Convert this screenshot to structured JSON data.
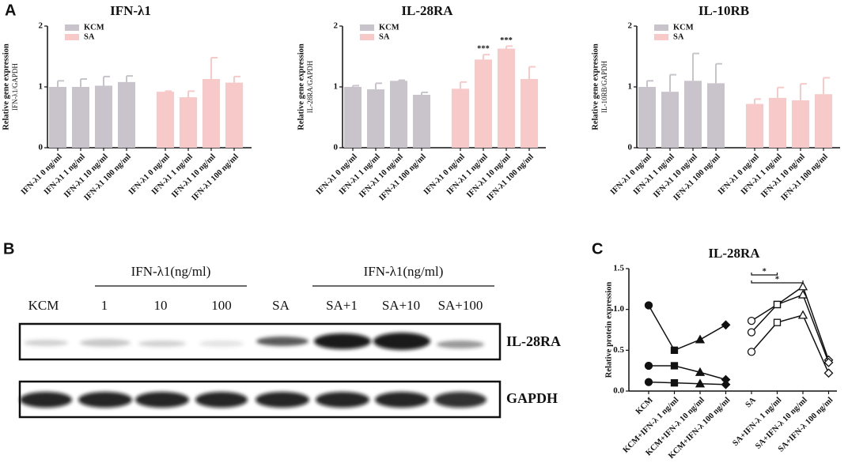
{
  "panel_labels": [
    "A",
    "B",
    "C"
  ],
  "blot": {
    "headers": [
      "IFN-λ1(ng/ml)",
      "IFN-λ1(ng/ml)"
    ],
    "lanes": [
      "KCM",
      "1",
      "10",
      "100",
      "SA",
      "SA+1",
      "SA+10",
      "SA+100"
    ],
    "rows": [
      "IL-28RA",
      "GAPDH"
    ]
  },
  "chart_data": [
    {
      "type": "bar",
      "title": "IFN-λ1",
      "ylabel": "Relative gene expression",
      "ylabel2": "IFN-λ1/GAPDH",
      "categories": [
        "IFN-λ1 0 ng/ml",
        "IFN-λ1 1 ng/ml",
        "IFN-λ1 10 ng/ml",
        "IFN-λ1 100 ng/ml",
        "IFN-λ1 0 ng/ml",
        "IFN-λ1 1 ng/ml",
        "IFN-λ1 10 ng/ml",
        "IFN-λ1 100 ng/ml"
      ],
      "series": [
        {
          "name": "KCM",
          "color": "#c9c4cc",
          "values": [
            1.0,
            1.0,
            1.02,
            1.08,
            null,
            null,
            null,
            null
          ],
          "errors": [
            0.1,
            0.13,
            0.15,
            0.1,
            null,
            null,
            null,
            null
          ]
        },
        {
          "name": "SA",
          "color": "#f7c9c9",
          "values": [
            null,
            null,
            null,
            null,
            0.92,
            0.83,
            1.13,
            1.07
          ],
          "errors": [
            null,
            null,
            null,
            null,
            0.01,
            0.1,
            0.35,
            0.1
          ]
        }
      ],
      "ylim": [
        0,
        2
      ],
      "yticks": [
        0,
        1,
        2
      ],
      "legend": "upper left"
    },
    {
      "type": "bar",
      "title": "IL-28RA",
      "ylabel": "Relative gene expression",
      "ylabel2": "IL-28RA/GAPDH",
      "categories": [
        "IFN-λ1 0 ng/ml",
        "IFN-λ1 1 ng/ml",
        "IFN-λ1 10 ng/ml",
        "IFN-λ1 100 ng/ml",
        "IFN-λ1 0 ng/ml",
        "IFN-λ1 1 ng/ml",
        "IFN-λ1 10 ng/ml",
        "IFN-λ1 100 ng/ml"
      ],
      "series": [
        {
          "name": "KCM",
          "color": "#c9c4cc",
          "values": [
            1.0,
            0.96,
            1.1,
            0.87,
            null,
            null,
            null,
            null
          ],
          "errors": [
            0.02,
            0.1,
            0.01,
            0.04,
            null,
            null,
            null,
            null
          ]
        },
        {
          "name": "SA",
          "color": "#f7c9c9",
          "values": [
            null,
            null,
            null,
            null,
            0.97,
            1.45,
            1.63,
            1.13
          ],
          "errors": [
            null,
            null,
            null,
            null,
            0.11,
            0.08,
            0.04,
            0.2
          ]
        }
      ],
      "annotations": [
        {
          "text": "***",
          "series": 1,
          "index": 5
        },
        {
          "text": "***",
          "series": 1,
          "index": 6
        }
      ],
      "ylim": [
        0,
        2
      ],
      "yticks": [
        0,
        1,
        2
      ],
      "legend": "upper left"
    },
    {
      "type": "bar",
      "title": "IL-10RB",
      "ylabel": "Relative gene expression",
      "ylabel2": "IL-10RB/GAPDH",
      "categories": [
        "IFN-λ1 0 ng/ml",
        "IFN-λ1 1 ng/ml",
        "IFN-λ1 10 ng/ml",
        "IFN-λ1 100 ng/ml",
        "IFN-λ1 0 ng/ml",
        "IFN-λ1 1 ng/ml",
        "IFN-λ1 10 ng/ml",
        "IFN-λ1 100 ng/ml"
      ],
      "series": [
        {
          "name": "KCM",
          "color": "#c9c4cc",
          "values": [
            1.0,
            0.92,
            1.1,
            1.06,
            null,
            null,
            null,
            null
          ],
          "errors": [
            0.1,
            0.28,
            0.45,
            0.32,
            null,
            null,
            null,
            null
          ]
        },
        {
          "name": "SA",
          "color": "#f7c9c9",
          "values": [
            null,
            null,
            null,
            null,
            0.72,
            0.82,
            0.78,
            0.88
          ],
          "errors": [
            null,
            null,
            null,
            null,
            0.08,
            0.17,
            0.27,
            0.27
          ]
        }
      ],
      "ylim": [
        0,
        2
      ],
      "yticks": [
        0,
        1,
        2
      ],
      "legend": "upper left"
    },
    {
      "type": "line",
      "title": "IL-28RA",
      "ylabel": "Relative protein expression",
      "categories": [
        "KCM",
        "KCM+IFN-λ 1 ng/ml",
        "KCM+IFN-λ 10 ng/ml",
        "KCM+IFN-λ 100 ng/ml",
        "SA",
        "SA+IFN-λ 1 ng/ml",
        "SA+IFN-λ 10 ng/ml",
        "SA+IFN-λ 100 ng/ml"
      ],
      "markers": [
        "circle",
        "square",
        "triangle",
        "diamond",
        "circle",
        "square",
        "triangle",
        "diamond"
      ],
      "series": [
        {
          "color": "#111111",
          "filled": true,
          "values": [
            1.05,
            0.5,
            0.63,
            0.81,
            null,
            null,
            null,
            null
          ]
        },
        {
          "color": "#111111",
          "filled": true,
          "values": [
            0.31,
            0.31,
            0.23,
            0.14,
            null,
            null,
            null,
            null
          ]
        },
        {
          "color": "#111111",
          "filled": true,
          "values": [
            0.11,
            0.1,
            0.09,
            0.08,
            null,
            null,
            null,
            null
          ]
        },
        {
          "color": "#111111",
          "filled": false,
          "values": [
            null,
            null,
            null,
            null,
            0.86,
            1.06,
            1.28,
            0.38
          ]
        },
        {
          "color": "#111111",
          "filled": false,
          "values": [
            null,
            null,
            null,
            null,
            0.72,
            1.06,
            1.18,
            0.35
          ]
        },
        {
          "color": "#111111",
          "filled": false,
          "values": [
            null,
            null,
            null,
            null,
            0.48,
            0.84,
            0.93,
            0.22
          ]
        }
      ],
      "brackets": [
        {
          "text": "*",
          "from": 4,
          "to": 5
        },
        {
          "text": "*",
          "from": 4,
          "to": 6
        }
      ],
      "ylim": [
        0,
        1.5
      ],
      "yticks": [
        {
          "value": 0,
          "label": "0.0"
        },
        {
          "value": 0.5,
          "label": "0.5"
        },
        {
          "value": 1,
          "label": "1.0"
        },
        {
          "value": 1.5,
          "label": "1.5"
        }
      ]
    }
  ]
}
